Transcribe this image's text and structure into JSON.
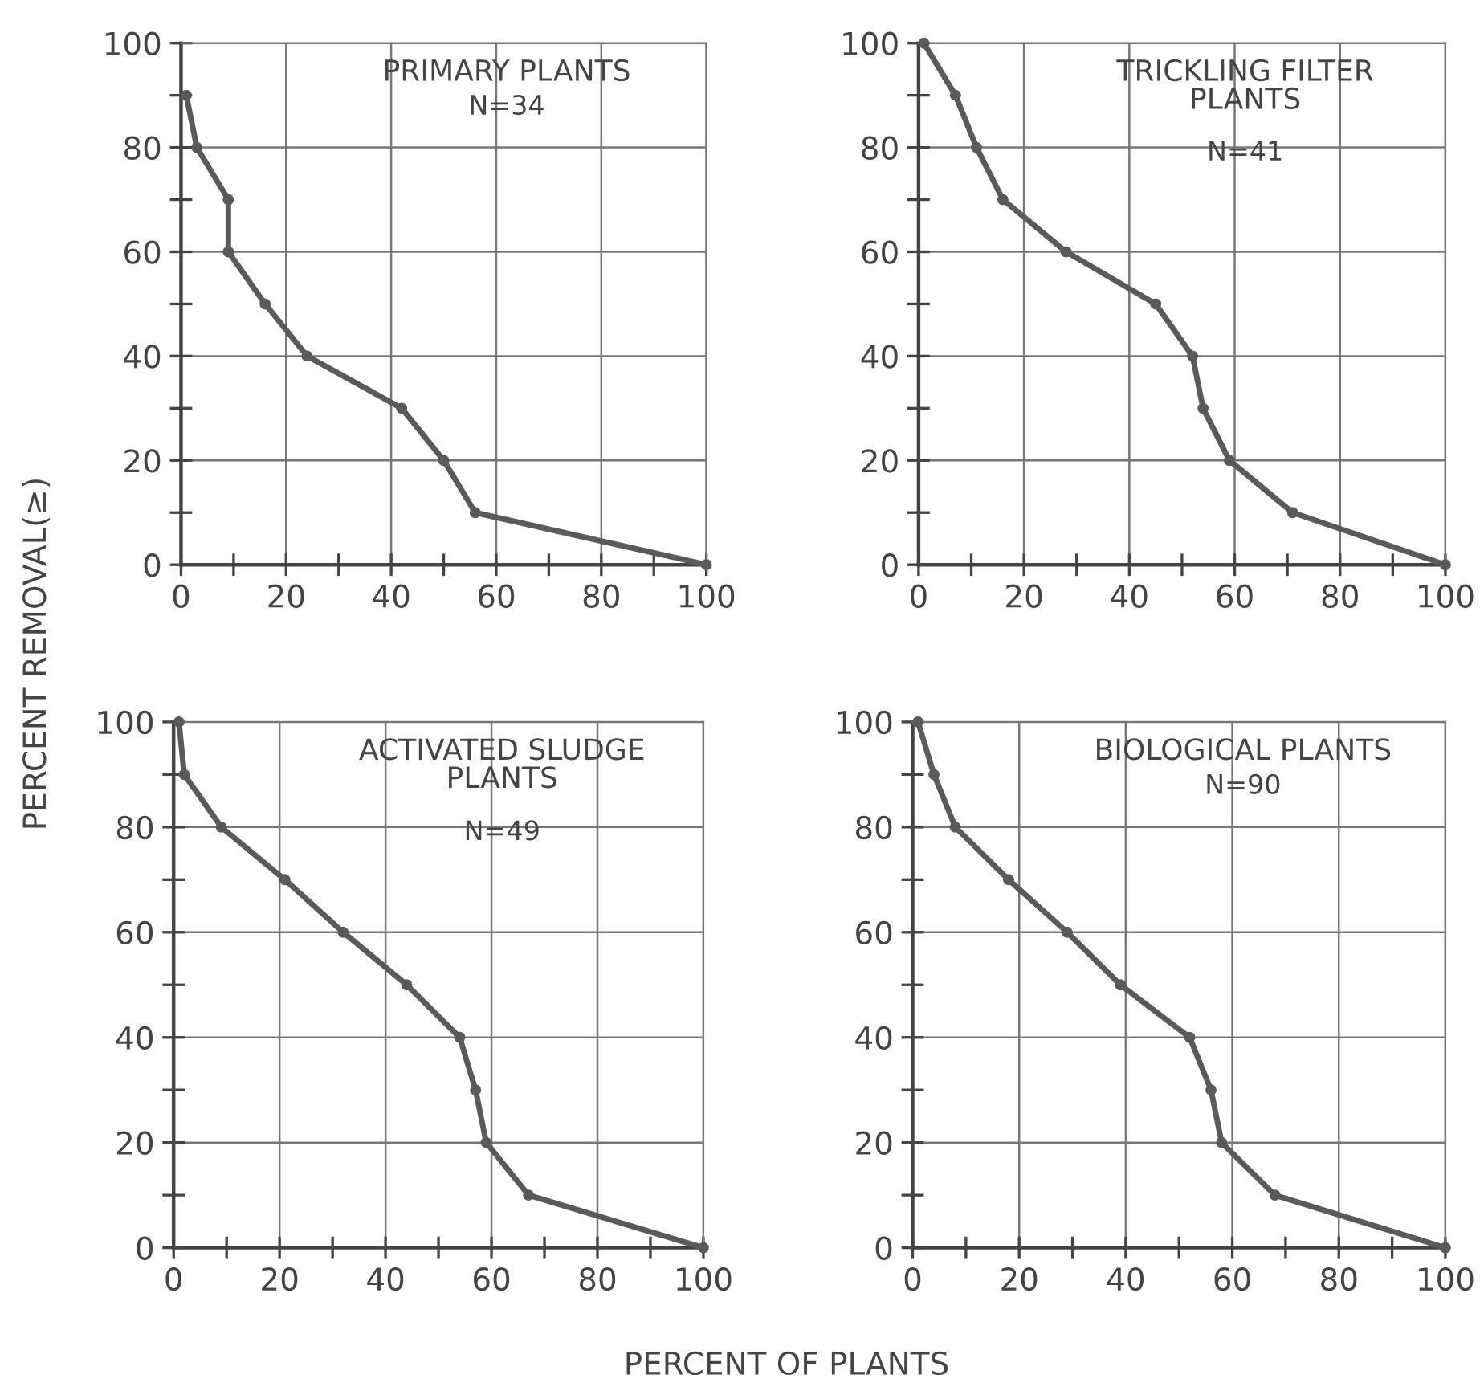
{
  "chart_data": [
    {
      "type": "line",
      "title": "PRIMARY PLANTS",
      "subtitle": "N=34",
      "ylabel": "PERCENT REMOVAL(≥)",
      "x": [
        1,
        3,
        9,
        9,
        16,
        24,
        42,
        50,
        56,
        100
      ],
      "series": [
        {
          "color": "#5a5a5a",
          "values": [
            90,
            80,
            70,
            60,
            50,
            40,
            30,
            20,
            10,
            0
          ]
        }
      ],
      "xlim": [
        0,
        100
      ],
      "ylim": [
        0,
        100
      ],
      "xticks": [
        0,
        {
          "value": 10,
          "label": null
        },
        20,
        {
          "value": 30,
          "label": null
        },
        40,
        {
          "value": 50,
          "label": null
        },
        60,
        {
          "value": 70,
          "label": null
        },
        80,
        {
          "value": 90,
          "label": null
        },
        100
      ],
      "yticks": [
        0,
        {
          "value": 10,
          "label": null
        },
        20,
        {
          "value": 30,
          "label": null
        },
        40,
        {
          "value": 50,
          "label": null
        },
        60,
        {
          "value": 70,
          "label": null
        },
        80,
        {
          "value": 90,
          "label": null
        },
        100
      ],
      "grid": true,
      "marker": "circle",
      "line_style": "solid"
    },
    {
      "type": "line",
      "title": "TRICKLING FILTER\nPLANTS",
      "subtitle": "N=41",
      "x": [
        1,
        7,
        11,
        16,
        28,
        45,
        52,
        54,
        59,
        71,
        100
      ],
      "series": [
        {
          "color": "#5a5a5a",
          "values": [
            100,
            90,
            80,
            70,
            60,
            50,
            40,
            30,
            20,
            10,
            0
          ]
        }
      ],
      "xlim": [
        0,
        100
      ],
      "ylim": [
        0,
        100
      ],
      "xticks": [
        0,
        {
          "value": 10,
          "label": null
        },
        20,
        {
          "value": 30,
          "label": null
        },
        40,
        {
          "value": 50,
          "label": null
        },
        60,
        {
          "value": 70,
          "label": null
        },
        80,
        {
          "value": 90,
          "label": null
        },
        100
      ],
      "yticks": [
        0,
        {
          "value": 10,
          "label": null
        },
        20,
        {
          "value": 30,
          "label": null
        },
        40,
        {
          "value": 50,
          "label": null
        },
        60,
        {
          "value": 70,
          "label": null
        },
        80,
        {
          "value": 90,
          "label": null
        },
        100
      ],
      "grid": true,
      "marker": "circle",
      "line_style": "solid"
    },
    {
      "type": "line",
      "title": "ACTIVATED SLUDGE\nPLANTS",
      "subtitle": "N=49",
      "x": [
        1,
        2,
        9,
        21,
        32,
        44,
        54,
        57,
        59,
        67,
        100
      ],
      "series": [
        {
          "color": "#5a5a5a",
          "values": [
            100,
            90,
            80,
            70,
            60,
            50,
            40,
            30,
            20,
            10,
            0
          ]
        }
      ],
      "xlim": [
        0,
        100
      ],
      "ylim": [
        0,
        100
      ],
      "xticks": [
        0,
        {
          "value": 10,
          "label": null
        },
        20,
        {
          "value": 30,
          "label": null
        },
        40,
        {
          "value": 50,
          "label": null
        },
        60,
        {
          "value": 70,
          "label": null
        },
        80,
        {
          "value": 90,
          "label": null
        },
        100
      ],
      "yticks": [
        0,
        {
          "value": 10,
          "label": null
        },
        20,
        {
          "value": 30,
          "label": null
        },
        40,
        {
          "value": 50,
          "label": null
        },
        60,
        {
          "value": 70,
          "label": null
        },
        80,
        {
          "value": 90,
          "label": null
        },
        100
      ],
      "grid": true,
      "marker": "circle",
      "line_style": "solid"
    },
    {
      "type": "line",
      "title": "BIOLOGICAL PLANTS",
      "subtitle": "N=90",
      "xlabel": "PERCENT OF PLANTS",
      "x": [
        1,
        4,
        8,
        18,
        29,
        39,
        52,
        56,
        58,
        68,
        100
      ],
      "series": [
        {
          "color": "#5a5a5a",
          "values": [
            100,
            90,
            80,
            70,
            60,
            50,
            40,
            30,
            20,
            10,
            0
          ]
        }
      ],
      "xlim": [
        0,
        100
      ],
      "ylim": [
        0,
        100
      ],
      "xticks": [
        0,
        {
          "value": 10,
          "label": null
        },
        20,
        {
          "value": 30,
          "label": null
        },
        40,
        {
          "value": 50,
          "label": null
        },
        60,
        {
          "value": 70,
          "label": null
        },
        80,
        {
          "value": 90,
          "label": null
        },
        100
      ],
      "yticks": [
        0,
        {
          "value": 10,
          "label": null
        },
        20,
        {
          "value": 30,
          "label": null
        },
        40,
        {
          "value": 50,
          "label": null
        },
        60,
        {
          "value": 70,
          "label": null
        },
        80,
        {
          "value": 90,
          "label": null
        },
        100
      ],
      "grid": true,
      "marker": "circle",
      "line_style": "solid"
    }
  ]
}
